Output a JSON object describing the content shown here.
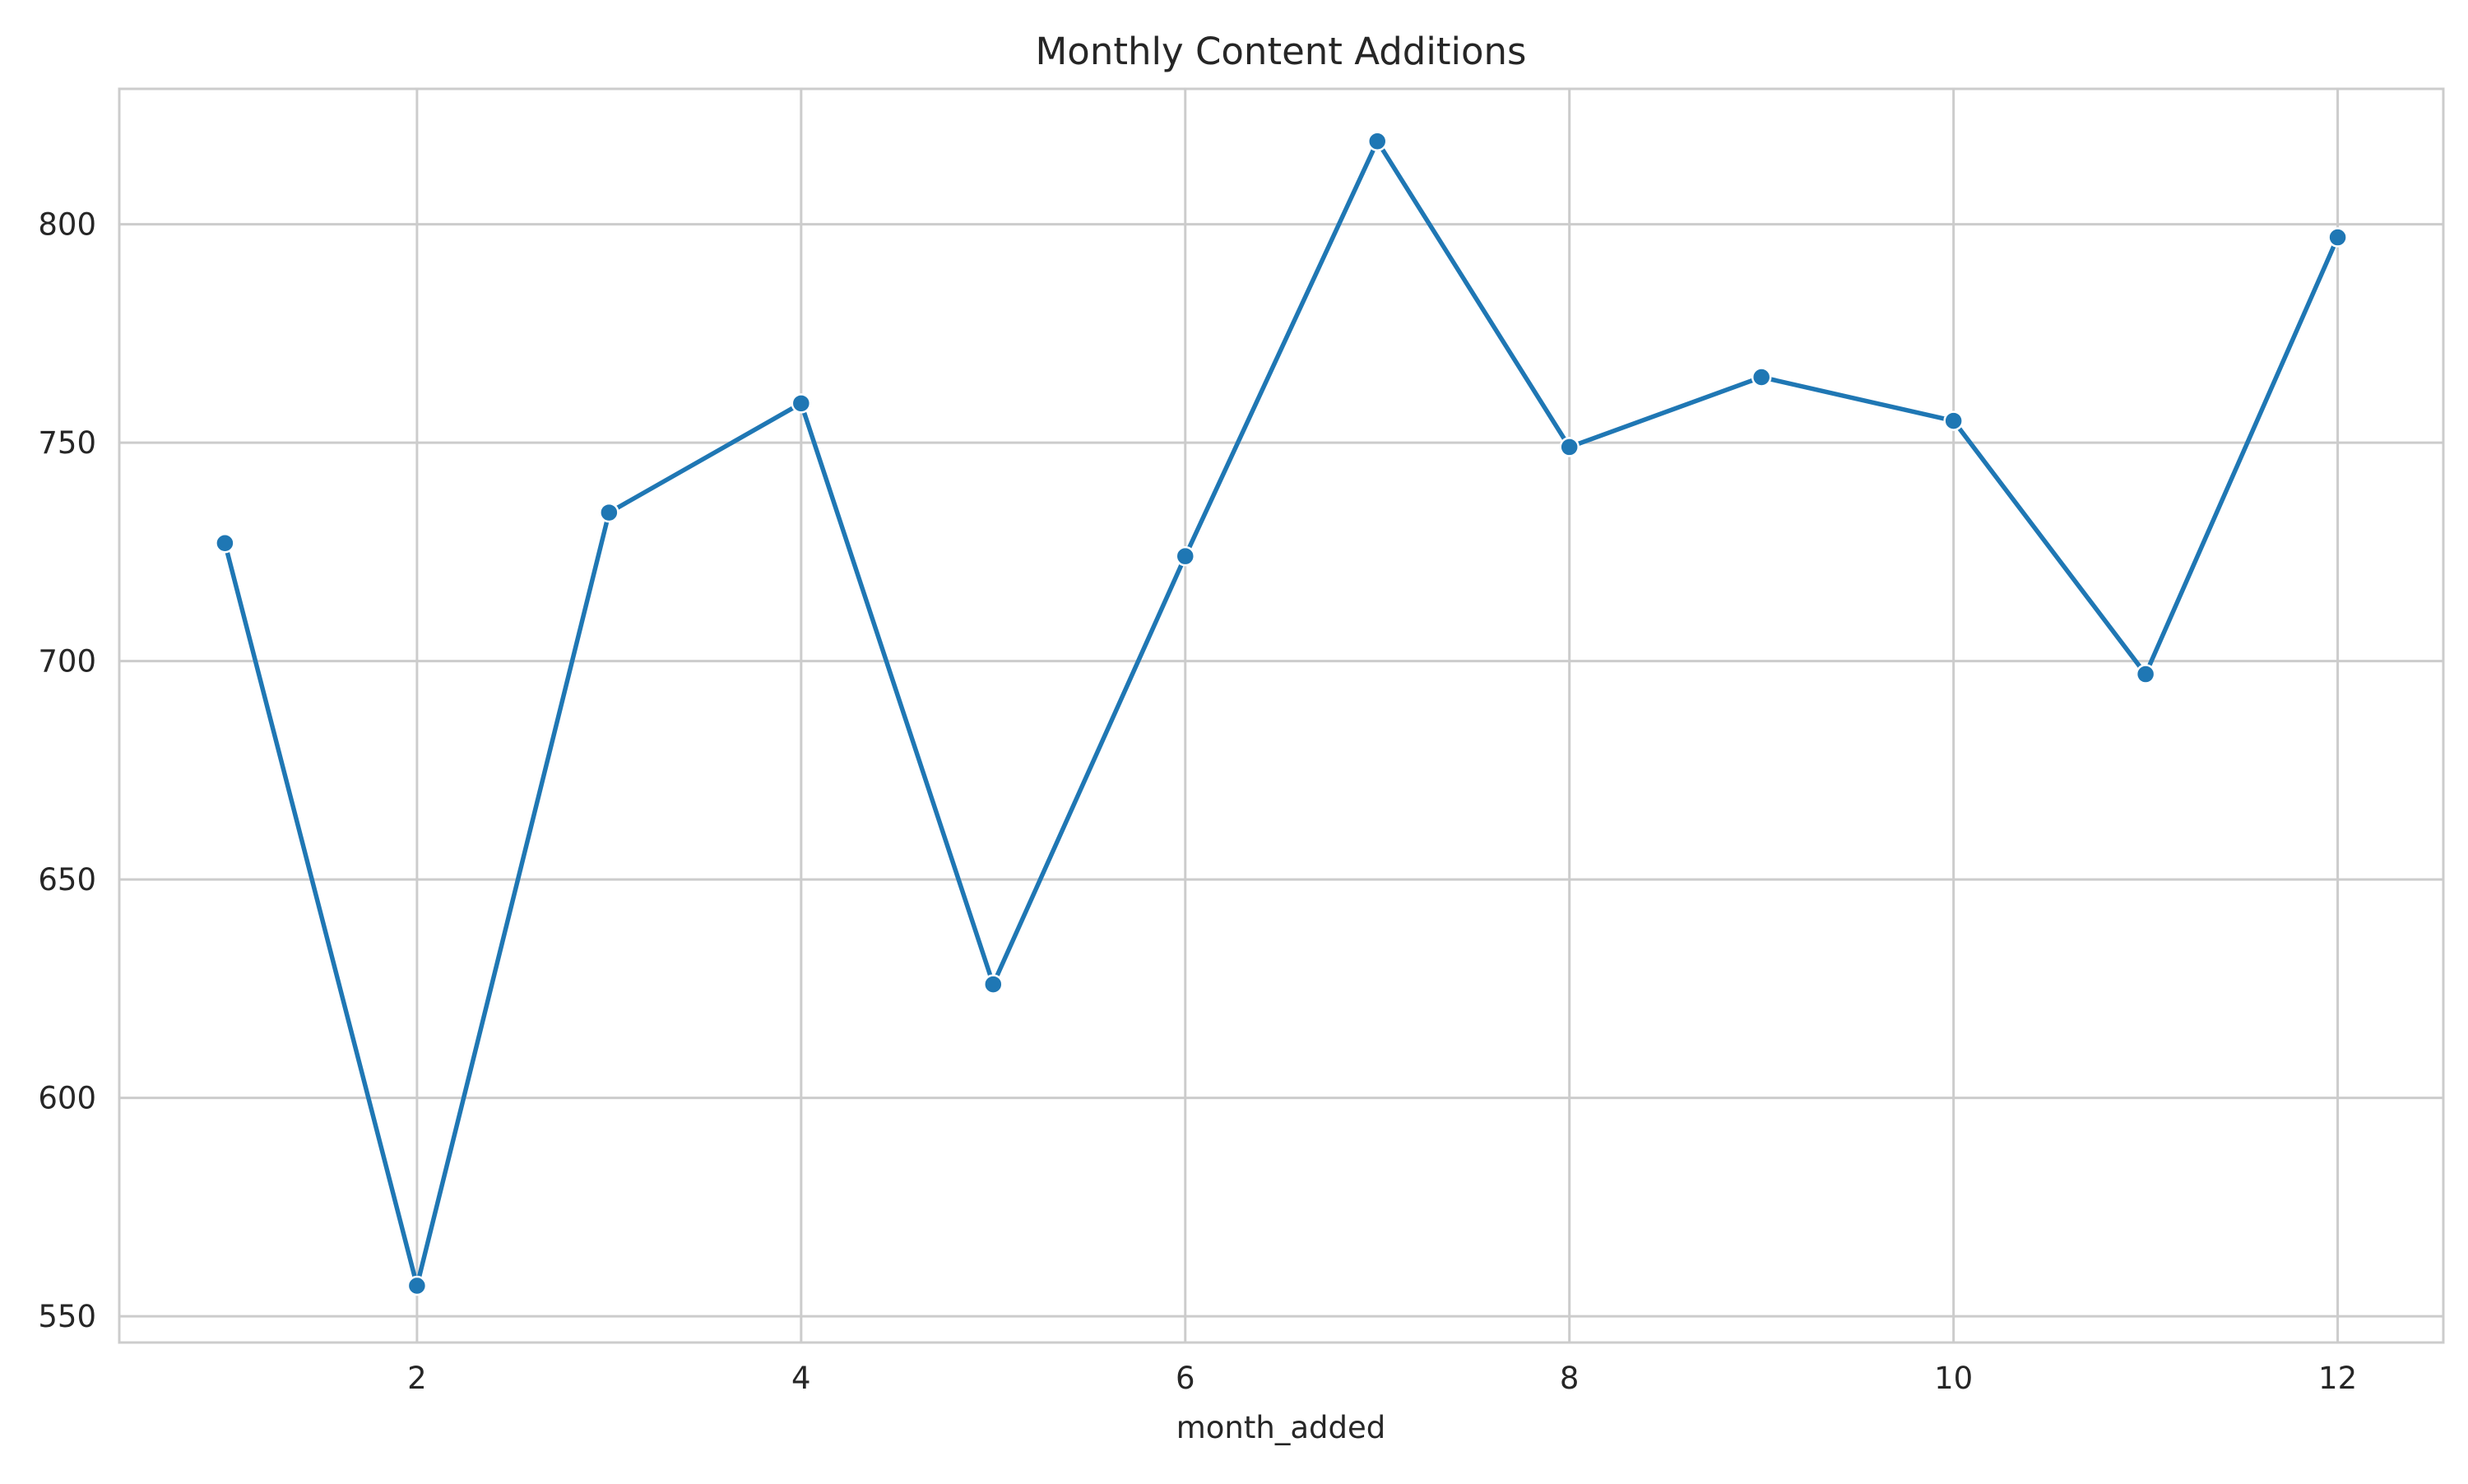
{
  "chart_data": {
    "type": "line",
    "title": "Monthly Content Additions",
    "xlabel": "month_added",
    "ylabel": "",
    "x": [
      1,
      2,
      3,
      4,
      5,
      6,
      7,
      8,
      9,
      10,
      11,
      12
    ],
    "series": [
      {
        "values": [
          727,
          557,
          734,
          759,
          626,
          724,
          819,
          749,
          765,
          755,
          697,
          797
        ],
        "color": "#1f77b4",
        "marker": "circle"
      }
    ],
    "xlim": [
      0.45,
      12.55
    ],
    "ylim": [
      544,
      831
    ],
    "xticks": [
      2,
      4,
      6,
      8,
      10,
      12
    ],
    "yticks": [
      550,
      600,
      650,
      700,
      750,
      800
    ],
    "grid": true,
    "legend": "none",
    "colors": {
      "grid": "#cccccc",
      "text": "#262626",
      "background": "#ffffff"
    }
  }
}
